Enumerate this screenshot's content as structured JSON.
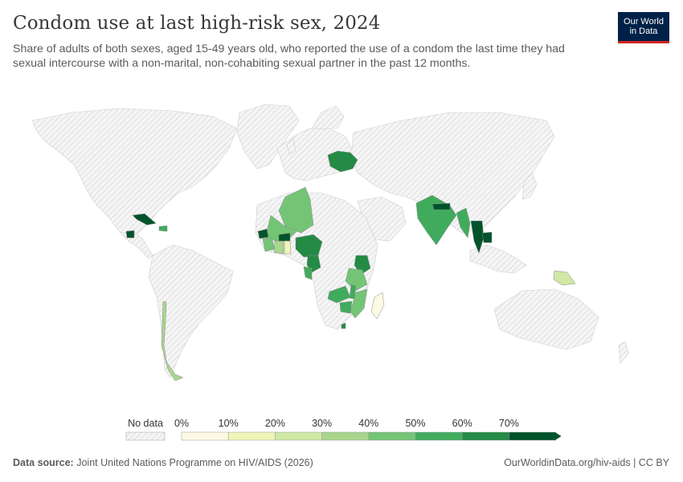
{
  "title": "Condom use at last high-risk sex, 2024",
  "subtitle": "Share of adults of both sexes, aged 15-49 years old, who reported the use of a condom the last time they had sexual intercourse with a non-marital, non-cohabiting sexual partner in the past 12 months.",
  "logo": {
    "line1": "Our World",
    "line2": "in Data"
  },
  "legend": {
    "no_data_label": "No data",
    "ticks": [
      "0%",
      "10%",
      "20%",
      "30%",
      "40%",
      "50%",
      "60%",
      "70%"
    ],
    "colors": [
      "#fcfae3",
      "#f0f5b9",
      "#cfe8a5",
      "#a8d68d",
      "#74c476",
      "#41ab5d",
      "#238b45",
      "#00532a"
    ]
  },
  "footer": {
    "source_label": "Data source:",
    "source": "Joint United Nations Programme on HIV/AIDS (2026)",
    "right": "OurWorldinData.org/hiv-aids | CC BY"
  },
  "map_data": {
    "nodata_color": "#f2f2f2",
    "countries": [
      {
        "name": "Ukraine",
        "value": 60
      },
      {
        "name": "Algeria",
        "value": 45
      },
      {
        "name": "Mali",
        "value": 45
      },
      {
        "name": "Senegal",
        "value": 70
      },
      {
        "name": "Guinea",
        "value": 40
      },
      {
        "name": "Côte d'Ivoire",
        "value": 30
      },
      {
        "name": "Burkina Faso",
        "value": 70
      },
      {
        "name": "Ghana",
        "value": 10
      },
      {
        "name": "Nigeria",
        "value": 60
      },
      {
        "name": "Cameroon",
        "value": 60
      },
      {
        "name": "Gabon",
        "value": 50
      },
      {
        "name": "Kenya",
        "value": 65
      },
      {
        "name": "Tanzania",
        "value": 40
      },
      {
        "name": "Zambia",
        "value": 50
      },
      {
        "name": "Malawi",
        "value": 50
      },
      {
        "name": "Mozambique",
        "value": 45
      },
      {
        "name": "Zimbabwe",
        "value": 50
      },
      {
        "name": "Eswatini",
        "value": 60
      },
      {
        "name": "Madagascar",
        "value": 5
      },
      {
        "name": "India",
        "value": 55
      },
      {
        "name": "Nepal",
        "value": 70
      },
      {
        "name": "Myanmar",
        "value": 55
      },
      {
        "name": "Thailand",
        "value": 70
      },
      {
        "name": "Cambodia",
        "value": 70
      },
      {
        "name": "Papua New Guinea",
        "value": 20
      },
      {
        "name": "Cuba",
        "value": 70
      },
      {
        "name": "Dominican Republic",
        "value": 50
      },
      {
        "name": "Guatemala",
        "value": 70
      },
      {
        "name": "Chile",
        "value": 35
      }
    ]
  }
}
